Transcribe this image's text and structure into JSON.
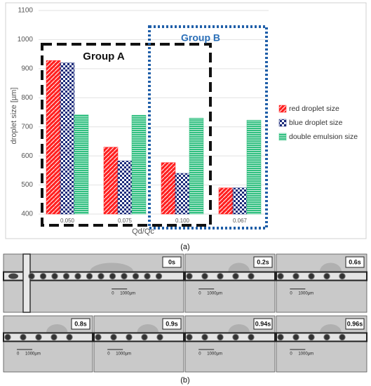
{
  "chart_data": {
    "type": "bar",
    "categories": [
      "0.050",
      "0.075",
      "0.100",
      "0.067"
    ],
    "series": [
      {
        "name": "red droplet size",
        "color": "#ff2020",
        "values": [
          928,
          630,
          577,
          490
        ]
      },
      {
        "name": "blue droplet size",
        "color": "#1a2a7a",
        "values": [
          920,
          583,
          540,
          490
        ]
      },
      {
        "name": "double emulsion size",
        "color": "#2fbf7f",
        "values": [
          741,
          740,
          730,
          723
        ]
      }
    ],
    "ylim": [
      400,
      1100
    ],
    "yticks": [
      400,
      500,
      600,
      700,
      800,
      900,
      1000,
      1100
    ],
    "x_label": "Qd/Qc",
    "y_label": "droplet size [µm]",
    "annotations": [
      "Group A",
      "Group B"
    ],
    "grid": true,
    "legend": "right"
  },
  "figure": {
    "panel_labels": [
      "(a)",
      "(b)"
    ],
    "frames": [
      "0s",
      "0.2s",
      "0.6s",
      "0.8s",
      "0.9s",
      "0.94s",
      "0.96s"
    ],
    "scale_labels": [
      "0",
      "1000µm"
    ]
  }
}
